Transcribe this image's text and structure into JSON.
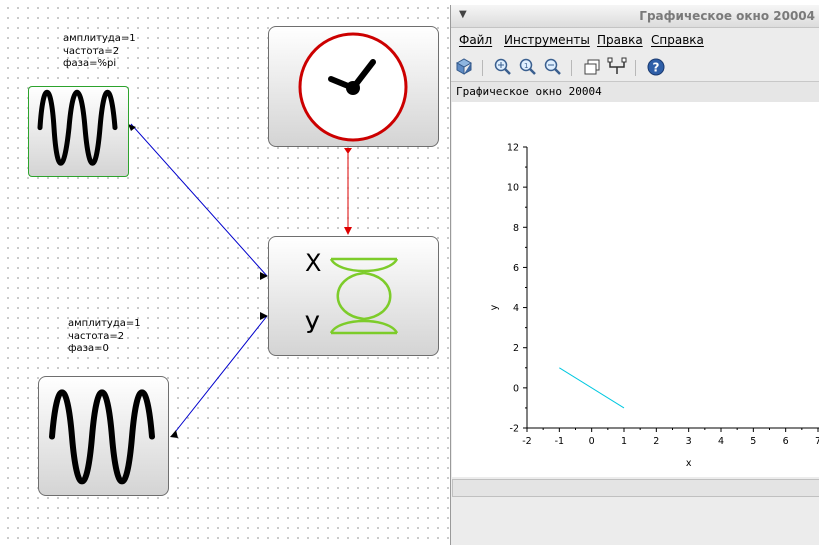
{
  "diagram": {
    "sine_block_1": {
      "params": "амплитуда=1\nчастота=2\nфаза=%pi"
    },
    "sine_block_2": {
      "params": "амплитуда=1\nчастота=2\nфаза=0"
    },
    "xy_scope_block": {
      "x_label": "X",
      "y_label": "У"
    },
    "clock_block": {
      "icon": "clock-icon"
    },
    "link_colors": {
      "data": "#0000cc",
      "activation": "#dd0000"
    }
  },
  "graphic_window": {
    "title": "Графическое окно 20004",
    "menu": [
      "Файл",
      "Инструменты",
      "Правка",
      "Справка"
    ],
    "toolbar_icons": [
      "rotate-icon",
      "zoom-icon",
      "zoom-reset-icon",
      "zoom-out-icon",
      "figure-icon",
      "datatip-icon",
      "help-icon"
    ],
    "caption": "Графическое окно 20004"
  },
  "chart_data": {
    "type": "line",
    "xlabel": "x",
    "ylabel": "y",
    "xlim": [
      -2,
      7
    ],
    "ylim": [
      -2,
      12
    ],
    "x_ticks": [
      "-2",
      "-1",
      "0",
      "1",
      "2",
      "3",
      "4",
      "5",
      "6",
      "7"
    ],
    "y_ticks": [
      "-2",
      "0",
      "2",
      "4",
      "6",
      "8",
      "10",
      "12"
    ],
    "series": [
      {
        "x": [
          -1,
          1
        ],
        "y": [
          1,
          -1
        ],
        "color": "#00c8e0"
      }
    ]
  }
}
